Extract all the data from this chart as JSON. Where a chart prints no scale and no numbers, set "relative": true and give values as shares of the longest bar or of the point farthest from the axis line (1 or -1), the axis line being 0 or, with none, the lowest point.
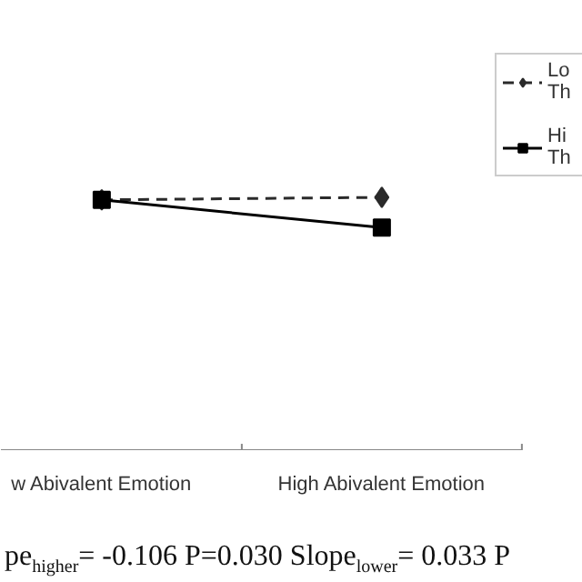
{
  "chart_data": {
    "type": "line",
    "relative": true,
    "categories": [
      "w Abivalent Emotion",
      "High Abivalent Emotion"
    ],
    "series": [
      {
        "name": "Lo\nTh",
        "color": "#2a2a2a",
        "values": [
          0.99,
          1.0
        ],
        "marker": "diamond",
        "line_style": "dashed"
      },
      {
        "name": "Hi\nTh",
        "color": "#000000",
        "values": [
          0.99,
          0.88
        ],
        "marker": "square",
        "line_style": "solid"
      }
    ],
    "legend": "right",
    "annotations": [
      "pe$_{higher}$= -0.106 P=0.030   Slope$_{lower}$= 0.033 P"
    ]
  }
}
